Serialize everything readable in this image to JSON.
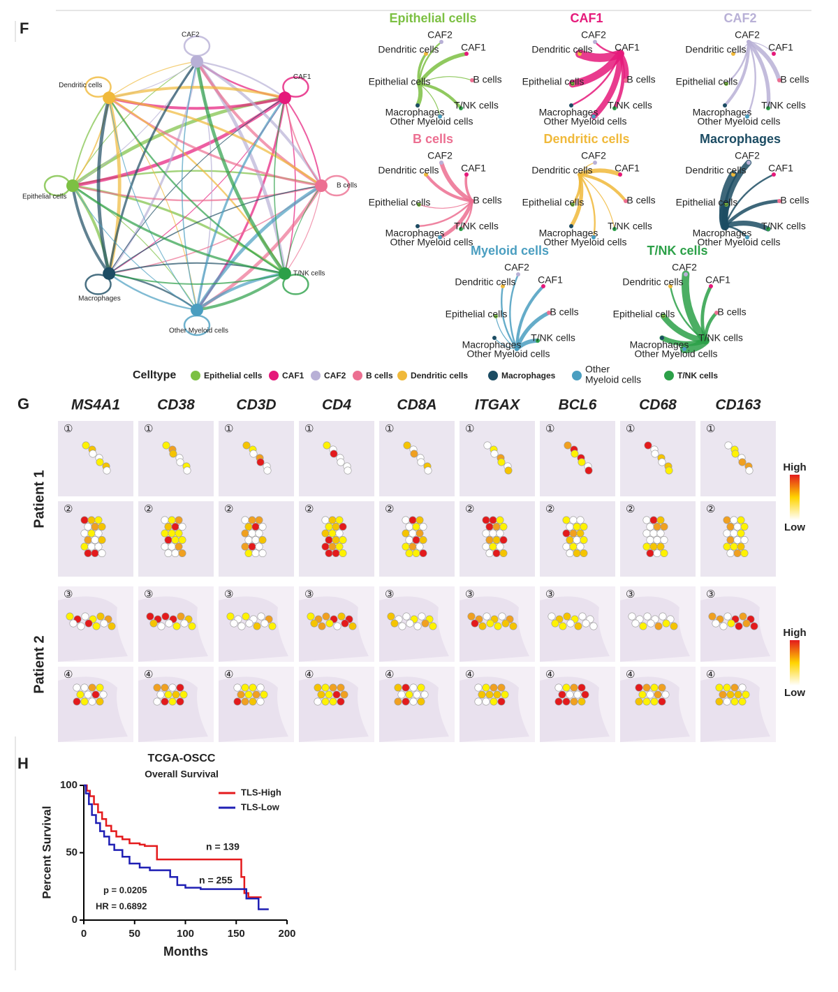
{
  "panel_f": {
    "label": "F",
    "cell_types": [
      {
        "name": "Epithelial cells",
        "color": "#7cc043"
      },
      {
        "name": "CAF1",
        "color": "#e5197a"
      },
      {
        "name": "CAF2",
        "color": "#b8b0d6"
      },
      {
        "name": "B cells",
        "color": "#ec6f91"
      },
      {
        "name": "Dendritic cells",
        "color": "#f0b93a"
      },
      {
        "name": "Macrophages",
        "color": "#1c4c63"
      },
      {
        "name": "Other Myeloid cells",
        "color": "#4a9ec0"
      },
      {
        "name": "T/NK cells",
        "color": "#2ca048"
      }
    ],
    "network_titles": [
      "Epithelial cells",
      "CAF1",
      "CAF2",
      "B cells",
      "Dendritic cells",
      "Macrophages",
      "Myeloid cells",
      "T/NK cells"
    ],
    "legend_title": "Celltype",
    "legend_other": [
      "Other",
      "Myeloid cells"
    ]
  },
  "panel_g": {
    "label": "G",
    "genes": [
      "MS4A1",
      "CD38",
      "CD3D",
      "CD4",
      "CD8A",
      "ITGAX",
      "BCL6",
      "CD68",
      "CD163"
    ],
    "patients": [
      "Patient 1",
      "Patient 2"
    ],
    "samples": [
      "①",
      "②",
      "③",
      "④"
    ],
    "scale": [
      "High",
      "Low"
    ]
  },
  "panel_h": {
    "label": "H"
  },
  "chart_data": {
    "type": "line",
    "title": "TCGA-OSCC",
    "subtitle": "Overall Survival",
    "x_label": "Months",
    "y_label": "Percent Survival",
    "xlim": [
      0,
      200
    ],
    "xticks": [
      0,
      50,
      100,
      150,
      200
    ],
    "ylim": [
      0,
      100
    ],
    "yticks": [
      0,
      50,
      100
    ],
    "series": [
      {
        "name": "TLS-High",
        "color": "#e41a1c",
        "x": [
          0,
          3,
          3,
          6,
          6,
          10,
          10,
          14,
          14,
          18,
          18,
          22,
          22,
          27,
          27,
          32,
          32,
          38,
          38,
          45,
          45,
          55,
          55,
          60,
          60,
          72,
          72,
          155,
          155,
          158,
          158,
          162,
          162,
          175
        ],
        "values": [
          100,
          100,
          96,
          96,
          92,
          92,
          86,
          86,
          80,
          80,
          75,
          75,
          70,
          70,
          66,
          66,
          62,
          62,
          60,
          60,
          57,
          57,
          56,
          56,
          55,
          55,
          45,
          45,
          32,
          32,
          20,
          20,
          17,
          17
        ]
      },
      {
        "name": "TLS-Low",
        "color": "#1f1fb4",
        "x": [
          0,
          2,
          2,
          5,
          5,
          8,
          8,
          12,
          12,
          16,
          16,
          20,
          20,
          25,
          25,
          30,
          30,
          38,
          38,
          45,
          45,
          55,
          55,
          65,
          65,
          85,
          85,
          92,
          92,
          100,
          100,
          115,
          115,
          160,
          160,
          172,
          172,
          182
        ],
        "values": [
          100,
          100,
          94,
          94,
          86,
          86,
          78,
          78,
          72,
          72,
          66,
          66,
          62,
          62,
          56,
          56,
          52,
          52,
          47,
          47,
          42,
          42,
          39,
          39,
          37,
          37,
          32,
          32,
          26,
          26,
          24,
          24,
          23,
          23,
          16,
          16,
          8,
          8
        ]
      }
    ],
    "annotations": [
      "n = 139",
      "n = 255",
      "p = 0.0205",
      "HR = 0.6892"
    ]
  }
}
